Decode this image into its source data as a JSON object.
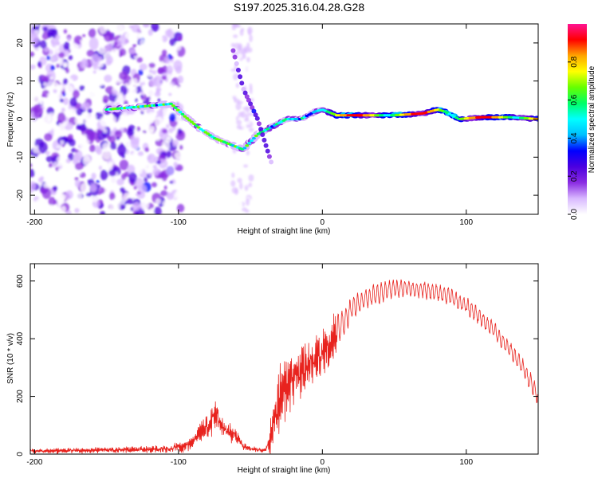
{
  "title": "S197.2025.316.04.28.G28",
  "chart_data": [
    {
      "type": "heatmap",
      "name": "spectrogram",
      "xlabel": "Height of straight line (km)",
      "ylabel": "Frequency (Hz)",
      "xlim": [
        -203,
        150
      ],
      "ylim": [
        -25,
        25
      ],
      "xticks": [
        -200,
        -100,
        0,
        100
      ],
      "xtick_labels": [
        "-200",
        "-100",
        "0",
        "100"
      ],
      "yticks": [
        -20,
        -10,
        0,
        10,
        20
      ],
      "ytick_labels": [
        "-20",
        "-10",
        "0",
        "10",
        "20"
      ],
      "ridge": {
        "x": [
          -150,
          -105,
          -95,
          -85,
          -75,
          -65,
          -55,
          -45,
          -35,
          -25,
          -15,
          -5,
          0,
          10,
          30,
          50,
          70,
          80,
          85,
          95,
          110,
          130,
          150
        ],
        "y": [
          2.5,
          4,
          0.5,
          -2.5,
          -5,
          -6.5,
          -8,
          -4,
          -2,
          0,
          0,
          2,
          2.5,
          1,
          1,
          1,
          1.5,
          2.5,
          2,
          0,
          0.5,
          0.5,
          0
        ]
      },
      "secondary_ridge": {
        "x": [
          -62,
          -55,
          -45,
          -35
        ],
        "y": [
          18,
          8,
          0,
          -12
        ]
      },
      "colorbar": {
        "label": "Normalized spectral amplitude",
        "ticks": [
          0,
          0.2,
          0.4,
          0.6,
          0.8
        ],
        "tick_labels": [
          "0.0",
          "0.2",
          "0.4",
          "0.6",
          "0.8"
        ],
        "range": [
          0,
          1
        ],
        "colors": [
          "#ffffff",
          "#d8b8ff",
          "#8a2be2",
          "#4b00e0",
          "#0000ff",
          "#00bfff",
          "#00ffff",
          "#00ff66",
          "#66ff00",
          "#ffff00",
          "#ffa500",
          "#ff0000",
          "#ff1493"
        ]
      }
    },
    {
      "type": "line",
      "name": "snr",
      "xlabel": "Height of straight line (km)",
      "ylabel": "SNR (10 * v/v)",
      "xlim": [
        -203,
        150
      ],
      "ylim": [
        0,
        660
      ],
      "xticks": [
        -200,
        -100,
        0,
        100
      ],
      "xtick_labels": [
        "-200",
        "-100",
        "0",
        "100"
      ],
      "yticks": [
        0,
        200,
        400,
        600
      ],
      "ytick_labels": [
        "0",
        "200",
        "400",
        "600"
      ],
      "color": "#e8231e",
      "envelope": {
        "x": [
          -203,
          -150,
          -110,
          -95,
          -85,
          -78,
          -74,
          -70,
          -65,
          -60,
          -55,
          -50,
          -45,
          -40,
          -38,
          -35,
          -30,
          -25,
          -20,
          -15,
          -10,
          -5,
          0,
          5,
          10,
          15,
          20,
          30,
          40,
          50,
          60,
          70,
          80,
          90,
          100,
          110,
          120,
          130,
          140,
          150
        ],
        "y": [
          15,
          20,
          25,
          40,
          90,
          140,
          175,
          120,
          95,
          80,
          35,
          25,
          20,
          18,
          40,
          130,
          260,
          300,
          320,
          340,
          360,
          370,
          400,
          430,
          470,
          500,
          540,
          570,
          590,
          600,
          600,
          595,
          585,
          570,
          540,
          500,
          450,
          390,
          320,
          230
        ],
        "spread": [
          10,
          12,
          15,
          25,
          40,
          60,
          70,
          40,
          40,
          30,
          15,
          12,
          10,
          10,
          20,
          100,
          150,
          130,
          120,
          110,
          100,
          90,
          100,
          100,
          90,
          80,
          70,
          60,
          60,
          50,
          50,
          50,
          50,
          50,
          50,
          50,
          50,
          50,
          50,
          60
        ]
      }
    }
  ]
}
